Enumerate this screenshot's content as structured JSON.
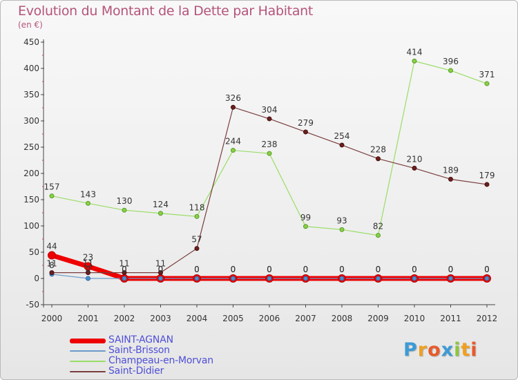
{
  "title": "Evolution du Montant de la Dette par Habitant",
  "unit_label": "(en €)",
  "brand": {
    "text": "Proxiti",
    "letters": [
      {
        "ch": "P",
        "color": "#3c9bd6"
      },
      {
        "ch": "r",
        "color": "#f0a020"
      },
      {
        "ch": "o",
        "color": "#e85a2a"
      },
      {
        "ch": "x",
        "color": "#3c9bd6"
      },
      {
        "ch": "i",
        "color": "#8cc63f"
      },
      {
        "ch": "t",
        "color": "#f0a020"
      },
      {
        "ch": "i",
        "color": "#e85a2a"
      }
    ]
  },
  "chart_data": {
    "type": "line",
    "title": "Evolution du Montant de la Dette par Habitant",
    "ylabel": "(en €)",
    "xlabel": "",
    "ylim": [
      -50,
      450
    ],
    "yticks": [
      -50,
      0,
      50,
      100,
      150,
      200,
      250,
      300,
      350,
      400,
      450
    ],
    "x": [
      "2000",
      "2001",
      "2002",
      "2003",
      "2004",
      "2005",
      "2006",
      "2007",
      "2008",
      "2009",
      "2010",
      "2011",
      "2012"
    ],
    "grid": false,
    "legend_position": "bottom-left",
    "series": [
      {
        "name": "SAINT-AGNAN",
        "color": "#ee0000",
        "values": [
          44,
          23,
          0,
          0,
          0,
          0,
          0,
          0,
          0,
          0,
          0,
          0,
          0
        ],
        "labels": [
          "44",
          "23",
          "0",
          "0",
          "0",
          "0",
          "0",
          "0",
          "0",
          "0",
          "0",
          "0",
          "0"
        ]
      },
      {
        "name": "Saint-Brisson",
        "color": "#6a9bc9",
        "values": [
          8,
          0,
          0,
          0,
          0,
          0,
          0,
          0,
          0,
          0,
          0,
          0,
          0
        ],
        "labels": [
          "8",
          "0",
          "0",
          "0",
          "0",
          "0",
          "0",
          "0",
          "0",
          "0",
          "0",
          "0",
          "0"
        ]
      },
      {
        "name": "Champeau-en-Morvan",
        "color": "#99dd66",
        "values": [
          157,
          143,
          130,
          124,
          118,
          244,
          238,
          99,
          93,
          82,
          414,
          396,
          371
        ],
        "labels": [
          "157",
          "143",
          "130",
          "124",
          "118",
          "244",
          "238",
          "99",
          "93",
          "82",
          "414",
          "396",
          "371"
        ]
      },
      {
        "name": "Saint-Didier",
        "color": "#7a3d3d",
        "values": [
          11,
          11,
          11,
          11,
          57,
          326,
          304,
          279,
          254,
          228,
          210,
          189,
          179
        ],
        "labels": [
          "11",
          "11",
          "11",
          "11",
          "57",
          "326",
          "304",
          "279",
          "254",
          "228",
          "210",
          "189",
          "179"
        ]
      }
    ]
  }
}
